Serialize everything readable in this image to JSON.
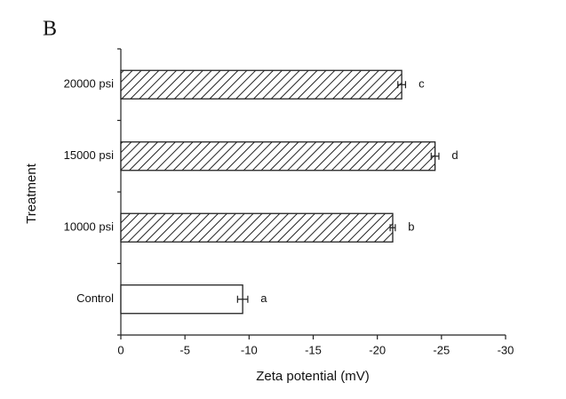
{
  "panel_label": "B",
  "chart_data": {
    "type": "barh",
    "x_label": "Zeta potential (mV)",
    "y_label": "Treatment",
    "categories": [
      "Control",
      "10000 psi",
      "15000 psi",
      "20000 psi"
    ],
    "values": [
      -9.5,
      -21.2,
      -24.5,
      -21.9
    ],
    "errors": [
      0.4,
      0.2,
      0.3,
      0.3
    ],
    "letters": [
      "a",
      "b",
      "d",
      "c"
    ],
    "fills": [
      "white",
      "hatch",
      "hatch",
      "hatch"
    ],
    "xlim": [
      0,
      -30
    ],
    "xticks": [
      0,
      -5,
      -10,
      -15,
      -20,
      -25,
      -30
    ]
  }
}
